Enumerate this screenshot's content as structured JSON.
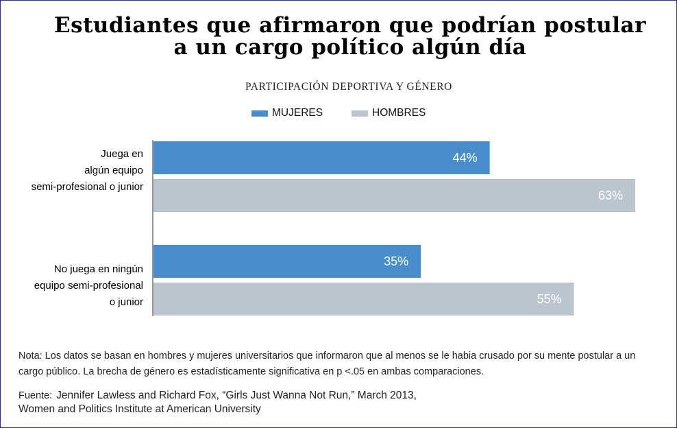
{
  "title": {
    "line1": "Estudiantes que afirmaron que podrían postular",
    "line2": "a un cargo político algún día"
  },
  "chart_data": {
    "type": "bar",
    "orientation": "horizontal",
    "title": "Estudiantes que afirmaron que podrían postular a un cargo político algún día",
    "subtitle": "PARTICIPACIÓN DEPORTIVA Y GÉNERO",
    "categories": [
      "Juega en\nalgún equipo\nsemi-profesional o junior",
      "No juega en ningún\nequipo semi-profesional\no junior"
    ],
    "series": [
      {
        "name": "MUJERES",
        "color": "#4a8dcc",
        "values": [
          44,
          35
        ],
        "labels": [
          "44%",
          "35%"
        ]
      },
      {
        "name": "HOMBRES",
        "color": "#bcc5cd",
        "values": [
          63,
          55
        ],
        "labels": [
          "63%",
          "55%"
        ]
      }
    ],
    "unit": "%",
    "xlim": [
      0,
      63
    ],
    "legend_position": "top-center",
    "grid": false
  },
  "note": "Nota: Los datos se basan en hombres y mujeres universitarios que informaron que al menos se le habia crusado por su mente postular a un cargo público. La brecha de género es estadísticamente significativa en p <.05 en ambas comparaciones.",
  "source": {
    "prefix": "Fuente:",
    "line1": "Jennifer Lawless and Richard Fox, “Girls Just Wanna Not Run,” March 2013,",
    "line2": "Women and Politics Institute at American University"
  }
}
